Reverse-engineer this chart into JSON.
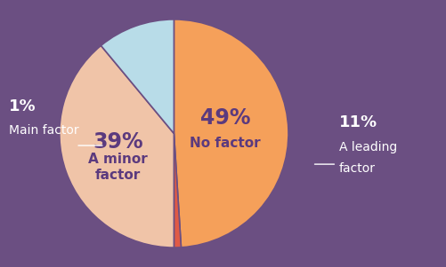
{
  "slices": [
    49,
    1,
    39,
    11
  ],
  "colors": [
    "#F5A05A",
    "#E05A45",
    "#F0C4A8",
    "#B8DCE8"
  ],
  "background_color": "#6B4F82",
  "inner_text_color": "#5B3A7E",
  "outer_text_color": "#FFFFFF",
  "start_angle": 90,
  "figsize": [
    5.01,
    3.01
  ],
  "dpi": 100,
  "label_49_pct": "49%",
  "label_49_txt": "No factor",
  "label_39_pct": "39%",
  "label_39_txt": "A minor\nfactor",
  "label_1_pct": "1%",
  "label_1_txt": "Main factor",
  "label_11_pct": "11%",
  "label_11_txt": "A leading\nfactor"
}
